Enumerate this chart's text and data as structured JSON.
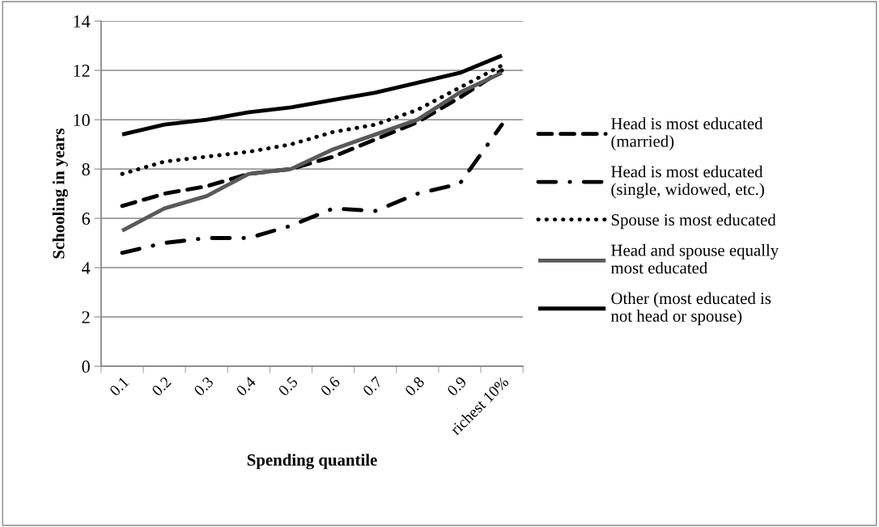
{
  "chart_data": {
    "type": "line",
    "xlabel": "Spending quantile",
    "ylabel": "Schooling in years",
    "categories": [
      "0.1",
      "0.2",
      "0.3",
      "0.4",
      "0.5",
      "0.6",
      "0.7",
      "0.8",
      "0.9",
      "richest 10%"
    ],
    "ylim": [
      0,
      14
    ],
    "yticks": [
      0,
      2,
      4,
      6,
      8,
      10,
      12,
      14
    ],
    "grid": "y",
    "legend": "right",
    "marker": "none",
    "series": [
      {
        "name": "Head is most educated (married)",
        "color": "#000000",
        "line_style": "dashed",
        "values": [
          6.5,
          7.0,
          7.3,
          7.8,
          8.0,
          8.5,
          9.2,
          9.9,
          10.9,
          12.0
        ]
      },
      {
        "name": "Head is most educated (single, widowed, etc.)",
        "color": "#000000",
        "line_style": "dashdot",
        "values": [
          4.6,
          5.0,
          5.2,
          5.2,
          5.7,
          6.4,
          6.3,
          7.0,
          7.4,
          9.8
        ]
      },
      {
        "name": "Spouse is most educated",
        "color": "#000000",
        "line_style": "dotted",
        "values": [
          7.8,
          8.3,
          8.5,
          8.7,
          9.0,
          9.5,
          9.8,
          10.4,
          11.3,
          12.2
        ]
      },
      {
        "name": "Head and spouse equally most educated",
        "color": "#595959",
        "line_style": "solid",
        "values": [
          5.5,
          6.4,
          6.9,
          7.8,
          8.0,
          8.8,
          9.4,
          10.0,
          11.1,
          11.9
        ]
      },
      {
        "name": "Other (most educated is not head or spouse)",
        "color": "#000000",
        "line_style": "solid",
        "values": [
          9.4,
          9.8,
          10.0,
          10.3,
          10.5,
          10.8,
          11.1,
          11.5,
          11.9,
          12.6
        ]
      }
    ]
  }
}
